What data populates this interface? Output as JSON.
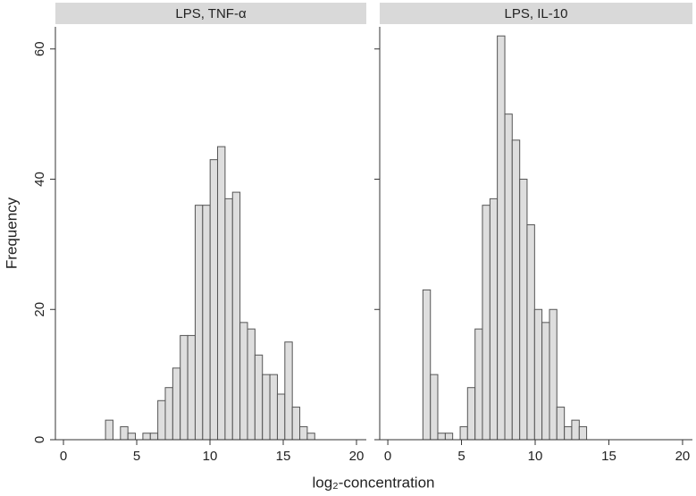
{
  "chart_data": {
    "type": "histogram",
    "ylabel": "Frequency",
    "xlabel": "log₂-concentration",
    "xlim": [
      -0.55,
      20.67
    ],
    "ylim": [
      0,
      63.4
    ],
    "xticks": [
      0,
      5,
      10,
      15,
      20
    ],
    "yticks": [
      0,
      20,
      40,
      60
    ],
    "color": "#dedede",
    "panels": [
      {
        "title": "LPS, TNF-α",
        "bins": [
          2.87,
          3.38,
          3.89,
          4.4,
          4.91,
          5.42,
          5.93,
          6.44,
          6.95,
          7.46,
          7.97,
          8.48,
          8.99,
          9.5,
          10.01,
          10.52,
          11.03,
          11.54,
          12.05,
          12.56,
          13.07,
          13.58,
          14.09,
          14.6,
          15.11,
          15.62,
          16.13,
          16.64,
          17.15
        ],
        "values": [
          3,
          0,
          2,
          1,
          0,
          1,
          1,
          6,
          8,
          11,
          16,
          16,
          36,
          36,
          43,
          45,
          37,
          38,
          18,
          17,
          13,
          10,
          10,
          7,
          15,
          5,
          2,
          1
        ]
      },
      {
        "title": "LPS, IL-10",
        "bins": [
          2.38,
          2.89,
          3.39,
          3.9,
          4.4,
          4.91,
          5.41,
          5.92,
          6.42,
          6.93,
          7.43,
          7.94,
          8.44,
          8.95,
          9.45,
          9.96,
          10.46,
          10.97,
          11.47,
          11.98,
          12.48,
          12.99,
          13.49
        ],
        "values": [
          23,
          10,
          1,
          1,
          0,
          2,
          8,
          17,
          36,
          37,
          62,
          50,
          46,
          40,
          33,
          20,
          18,
          20,
          5,
          2,
          3,
          2
        ]
      }
    ]
  }
}
